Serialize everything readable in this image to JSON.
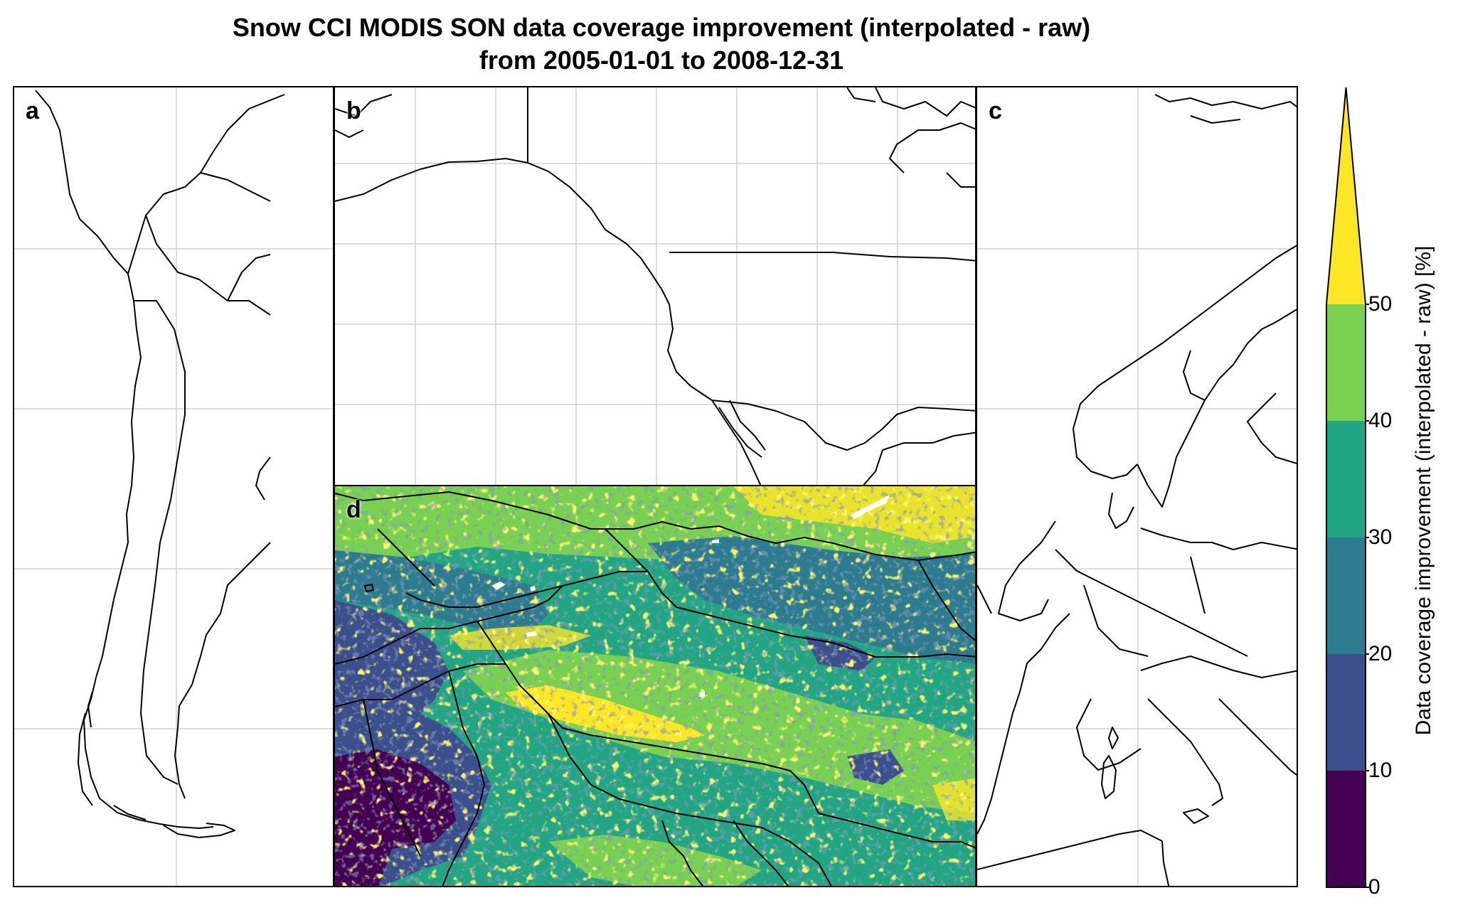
{
  "title": {
    "line1": "Snow CCI MODIS SON data coverage improvement (interpolated - raw)",
    "line2": "from 2005-01-01 to 2008-12-31"
  },
  "panels": [
    {
      "id": "a",
      "label": "a",
      "region": "South America (Chile / Argentina)",
      "has_data": false
    },
    {
      "id": "b",
      "label": "b",
      "region": "Western North America",
      "has_data": false
    },
    {
      "id": "c",
      "label": "c",
      "region": "Europe",
      "has_data": false
    },
    {
      "id": "d",
      "label": "d",
      "region": "High Mountain Asia",
      "has_data": true
    }
  ],
  "colorbar": {
    "label": "Data coverage improvement (interpolated - raw) [%]",
    "ticks": [
      "0",
      "10",
      "20",
      "30",
      "40",
      "50"
    ],
    "levels": [
      {
        "from": 0,
        "to": 10,
        "color": "#440154"
      },
      {
        "from": 10,
        "to": 20,
        "color": "#3b4f8c"
      },
      {
        "from": 20,
        "to": 30,
        "color": "#2c7b8e"
      },
      {
        "from": 30,
        "to": 40,
        "color": "#22a583"
      },
      {
        "from": 40,
        "to": 50,
        "color": "#79d151"
      },
      {
        "from": 50,
        "to": null,
        "color": "#fde725"
      }
    ],
    "extend": "max"
  },
  "colors": {
    "coastline": "#000000",
    "gridline": "#cfcfcf"
  }
}
